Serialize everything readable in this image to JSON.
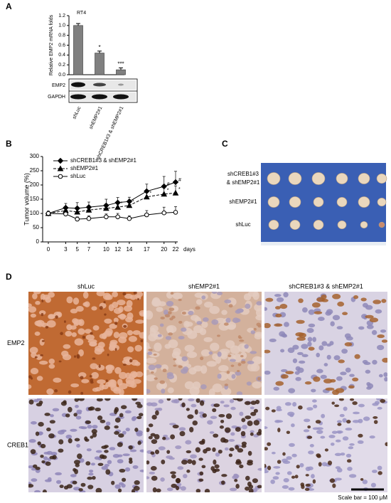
{
  "chart_data": [
    {
      "type": "bar",
      "panel": "A",
      "title": "RT4",
      "y_label": "Relative EMP2 mRNA folds",
      "categories": [
        "shLuc",
        "shEMP2#1",
        "shCREB1#3 & shEMP2#1"
      ],
      "values": [
        1.0,
        0.44,
        0.1
      ],
      "errors": [
        0.04,
        0.04,
        0.04
      ],
      "significance": [
        null,
        "*",
        "***"
      ],
      "color": "#808080",
      "ylim": [
        0,
        1.2
      ],
      "yticks": [
        {
          "value": 0,
          "label": "0.0"
        },
        0.2,
        0.4,
        0.6,
        0.8,
        {
          "value": 1,
          "label": "1.0"
        },
        1.2
      ]
    },
    {
      "type": "line",
      "panel": "B",
      "y_label": "Tumor volume (%)",
      "x_label": "days",
      "x": [
        0,
        3,
        5,
        7,
        10,
        12,
        14,
        17,
        20,
        22
      ],
      "xlim": [
        0,
        22
      ],
      "xticks": [
        0,
        3,
        5,
        7,
        10,
        12,
        14,
        17,
        20,
        22
      ],
      "ylim": [
        0,
        300
      ],
      "yticks": [
        0,
        50,
        100,
        150,
        200,
        250,
        300
      ],
      "series": [
        {
          "name": "shCREB1#3 & shEMP2#1",
          "color": "#000000",
          "marker": "diamond",
          "line": "solid",
          "values": [
            100,
            120,
            118,
            122,
            128,
            138,
            142,
            178,
            195,
            210
          ],
          "errors": [
            8,
            15,
            20,
            18,
            22,
            18,
            15,
            25,
            35,
            38
          ],
          "significance": [
            null,
            null,
            null,
            null,
            null,
            null,
            null,
            null,
            "#",
            "#"
          ]
        },
        {
          "name": "shEMP2#1",
          "color": "#000000",
          "marker": "triangle",
          "line": "dashed",
          "values": [
            100,
            110,
            105,
            112,
            118,
            122,
            128,
            158,
            168,
            172
          ],
          "errors": [
            6,
            12,
            15,
            15,
            15,
            18,
            20,
            25,
            22,
            25
          ],
          "significance": [
            null,
            null,
            null,
            null,
            null,
            "*",
            "*",
            "*",
            "*",
            "*"
          ]
        },
        {
          "name": "shLuc",
          "color": "#000000",
          "marker": "circle-open",
          "line": "solid",
          "values": [
            100,
            98,
            80,
            82,
            88,
            88,
            82,
            95,
            102,
            104
          ],
          "errors": [
            5,
            8,
            8,
            10,
            10,
            12,
            10,
            15,
            20,
            20
          ],
          "significance": [
            null,
            null,
            null,
            null,
            null,
            null,
            null,
            null,
            null,
            null
          ]
        }
      ]
    }
  ],
  "blot": {
    "rows": [
      "EMP2",
      "GAPDH"
    ]
  },
  "photo": {
    "panel": "C",
    "rows": [
      [
        "shCREB1#3",
        "& shEMP2#1"
      ],
      [
        "shEMP2#1"
      ],
      [
        "shLuc"
      ]
    ]
  },
  "micrographs": {
    "panel": "D",
    "columns": [
      "shLuc",
      "shEMP2#1",
      "shCREB1#3 & shEMP2#1"
    ],
    "rows": [
      "EMP2",
      "CREB1"
    ],
    "scale_bar": "Scale bar = 100 μM"
  }
}
